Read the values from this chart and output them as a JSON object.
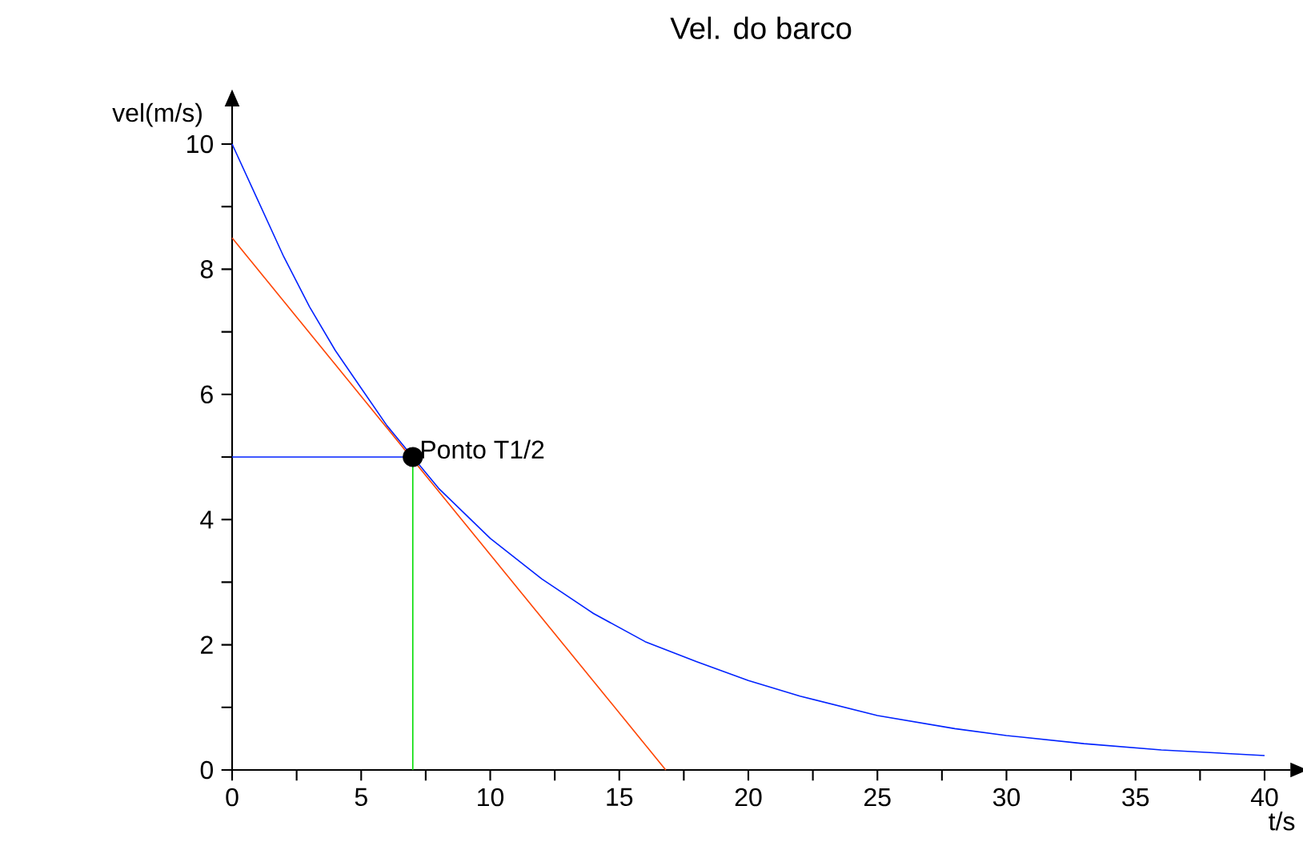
{
  "chart_data": {
    "type": "line",
    "title": "Vel. do barco",
    "xlabel": "t/s",
    "ylabel": "vel(m/s)",
    "xlim": [
      0,
      41
    ],
    "ylim": [
      0,
      10.6
    ],
    "xticks": [
      0,
      {
        "value": 2.5,
        "label": null
      },
      5,
      {
        "value": 7.5,
        "label": null
      },
      10,
      {
        "value": 12.5,
        "label": null
      },
      15,
      {
        "value": 17.5,
        "label": null
      },
      20,
      {
        "value": 22.5,
        "label": null
      },
      25,
      {
        "value": 27.5,
        "label": null
      },
      30,
      {
        "value": 32.5,
        "label": null
      },
      35,
      {
        "value": 37.5,
        "label": null
      },
      40
    ],
    "yticks": [
      0,
      {
        "value": 1,
        "label": null
      },
      2,
      {
        "value": 3,
        "label": null
      },
      4,
      {
        "value": 5,
        "label": null
      },
      6,
      {
        "value": 7,
        "label": null
      },
      8,
      {
        "value": 9,
        "label": null
      },
      10
    ],
    "marker": "none",
    "series": [
      {
        "color": "#0022ff",
        "x": [
          0,
          1,
          2,
          3,
          4,
          5,
          6,
          7,
          8,
          9,
          10,
          12,
          14,
          16,
          18,
          20,
          22,
          25,
          28,
          30,
          33,
          36,
          40
        ],
        "values": [
          10,
          9.1,
          8.2,
          7.4,
          6.7,
          6.1,
          5.5,
          5.0,
          4.5,
          4.1,
          3.7,
          3.05,
          2.5,
          2.05,
          1.73,
          1.43,
          1.18,
          0.87,
          0.66,
          0.55,
          0.42,
          0.32,
          0.23
        ]
      },
      {
        "color": "#ff4400",
        "x": [
          0,
          16.8
        ],
        "values": [
          8.5,
          0
        ]
      },
      {
        "color": "#0022ff",
        "x": [
          0,
          7
        ],
        "values": [
          5,
          5
        ]
      },
      {
        "color": "#00dd00",
        "x": [
          7,
          7
        ],
        "values": [
          0,
          5
        ]
      },
      {
        "type": "scatter",
        "color": "#000000",
        "marker": "circle",
        "x": [
          7
        ],
        "values": [
          5
        ]
      }
    ],
    "annotations": [
      {
        "text": "Ponto T1/2",
        "x": 7,
        "y": 5
      }
    ]
  }
}
